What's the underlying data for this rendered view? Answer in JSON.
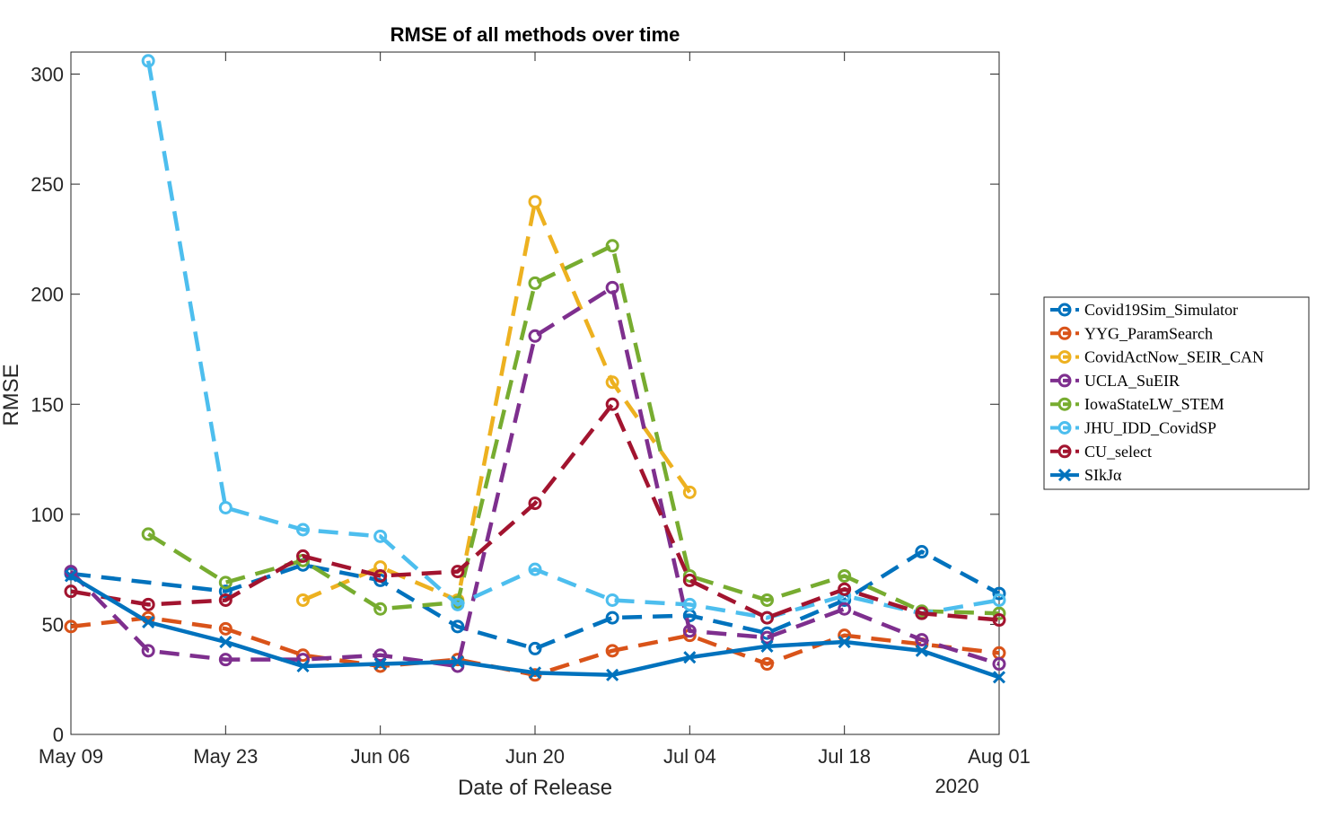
{
  "chart_data": {
    "type": "line",
    "title": "RMSE of all methods over time",
    "xlabel": "Date of Release",
    "ylabel": "RMSE",
    "year_label": "2020",
    "xlim": [
      "2020-05-09",
      "2020-08-01"
    ],
    "ylim": [
      0,
      310
    ],
    "x_ticks": [
      {
        "date": "2020-05-09",
        "label": "May 09"
      },
      {
        "date": "2020-05-23",
        "label": "May 23"
      },
      {
        "date": "2020-06-06",
        "label": "Jun 06"
      },
      {
        "date": "2020-06-20",
        "label": "Jun 20"
      },
      {
        "date": "2020-07-04",
        "label": "Jul 04"
      },
      {
        "date": "2020-07-18",
        "label": "Jul 18"
      },
      {
        "date": "2020-08-01",
        "label": "Aug 01"
      }
    ],
    "y_ticks": [
      0,
      50,
      100,
      150,
      200,
      250,
      300
    ],
    "grid": false,
    "legend_position": "right",
    "series": [
      {
        "name": "Covid19Sim_Simulator",
        "color": "#0072BD",
        "style": "dashed",
        "marker": "circle",
        "points": [
          [
            "2020-05-09",
            73
          ],
          [
            "2020-05-23",
            65
          ],
          [
            "2020-05-30",
            77
          ],
          [
            "2020-06-06",
            70
          ],
          [
            "2020-06-13",
            49
          ],
          [
            "2020-06-20",
            39
          ],
          [
            "2020-06-27",
            53
          ],
          [
            "2020-07-04",
            54
          ],
          [
            "2020-07-11",
            46
          ],
          [
            "2020-07-18",
            61
          ],
          [
            "2020-07-25",
            83
          ],
          [
            "2020-08-01",
            64
          ]
        ]
      },
      {
        "name": "YYG_ParamSearch",
        "color": "#D95319",
        "style": "dashed",
        "marker": "circle",
        "points": [
          [
            "2020-05-09",
            49
          ],
          [
            "2020-05-16",
            53
          ],
          [
            "2020-05-23",
            48
          ],
          [
            "2020-05-30",
            36
          ],
          [
            "2020-06-06",
            31
          ],
          [
            "2020-06-13",
            34
          ],
          [
            "2020-06-20",
            27
          ],
          [
            "2020-06-27",
            38
          ],
          [
            "2020-07-04",
            45
          ],
          [
            "2020-07-11",
            32
          ],
          [
            "2020-07-18",
            45
          ],
          [
            "2020-07-25",
            41
          ],
          [
            "2020-08-01",
            37
          ]
        ]
      },
      {
        "name": "CovidActNow_SEIR_CAN",
        "color": "#EDB120",
        "style": "dashed",
        "marker": "circle",
        "points": [
          [
            "2020-05-30",
            61
          ],
          [
            "2020-06-06",
            76
          ],
          [
            "2020-06-13",
            61
          ],
          [
            "2020-06-20",
            242
          ],
          [
            "2020-06-27",
            160
          ],
          [
            "2020-07-04",
            110
          ]
        ]
      },
      {
        "name": "UCLA_SuEIR",
        "color": "#7E2F8E",
        "style": "dashed",
        "marker": "circle",
        "points": [
          [
            "2020-05-09",
            74
          ],
          [
            "2020-05-16",
            38
          ],
          [
            "2020-05-23",
            34
          ],
          [
            "2020-05-30",
            34
          ],
          [
            "2020-06-06",
            36
          ],
          [
            "2020-06-13",
            31
          ],
          [
            "2020-06-20",
            181
          ],
          [
            "2020-06-27",
            203
          ],
          [
            "2020-07-04",
            47
          ],
          [
            "2020-07-11",
            44
          ],
          [
            "2020-07-18",
            57
          ],
          [
            "2020-07-25",
            43
          ],
          [
            "2020-08-01",
            32
          ]
        ]
      },
      {
        "name": "IowaStateLW_STEM",
        "color": "#77AC30",
        "style": "dashed",
        "marker": "circle",
        "points": [
          [
            "2020-05-16",
            91
          ],
          [
            "2020-05-23",
            69
          ],
          [
            "2020-05-30",
            79
          ],
          [
            "2020-06-06",
            57
          ],
          [
            "2020-06-13",
            60
          ],
          [
            "2020-06-20",
            205
          ],
          [
            "2020-06-27",
            222
          ],
          [
            "2020-07-04",
            72
          ],
          [
            "2020-07-11",
            61
          ],
          [
            "2020-07-18",
            72
          ],
          [
            "2020-07-25",
            56
          ],
          [
            "2020-08-01",
            55
          ]
        ]
      },
      {
        "name": "JHU_IDD_CovidSP",
        "color": "#4DBEEE",
        "style": "dashed",
        "marker": "circle",
        "points": [
          [
            "2020-05-16",
            306
          ],
          [
            "2020-05-23",
            103
          ],
          [
            "2020-05-30",
            93
          ],
          [
            "2020-06-06",
            90
          ],
          [
            "2020-06-13",
            59
          ],
          [
            "2020-06-20",
            75
          ],
          [
            "2020-06-27",
            61
          ],
          [
            "2020-07-04",
            59
          ],
          [
            "2020-07-11",
            53
          ],
          [
            "2020-07-18",
            63
          ],
          [
            "2020-07-25",
            55
          ],
          [
            "2020-08-01",
            61
          ]
        ]
      },
      {
        "name": "CU_select",
        "color": "#A2142F",
        "style": "dashed",
        "marker": "circle",
        "points": [
          [
            "2020-05-09",
            65
          ],
          [
            "2020-05-16",
            59
          ],
          [
            "2020-05-23",
            61
          ],
          [
            "2020-05-30",
            81
          ],
          [
            "2020-06-06",
            72
          ],
          [
            "2020-06-13",
            74
          ],
          [
            "2020-06-20",
            105
          ],
          [
            "2020-06-27",
            150
          ],
          [
            "2020-07-04",
            70
          ],
          [
            "2020-07-11",
            53
          ],
          [
            "2020-07-18",
            66
          ],
          [
            "2020-07-25",
            55
          ],
          [
            "2020-08-01",
            52
          ]
        ]
      },
      {
        "name": "SIkJα",
        "color": "#0072BD",
        "style": "solid",
        "marker": "x",
        "points": [
          [
            "2020-05-09",
            72
          ],
          [
            "2020-05-16",
            51
          ],
          [
            "2020-05-23",
            42
          ],
          [
            "2020-05-30",
            31
          ],
          [
            "2020-06-06",
            32
          ],
          [
            "2020-06-13",
            33
          ],
          [
            "2020-06-20",
            28
          ],
          [
            "2020-06-27",
            27
          ],
          [
            "2020-07-04",
            35
          ],
          [
            "2020-07-11",
            40
          ],
          [
            "2020-07-18",
            42
          ],
          [
            "2020-07-25",
            38
          ],
          [
            "2020-08-01",
            26
          ]
        ]
      }
    ]
  }
}
